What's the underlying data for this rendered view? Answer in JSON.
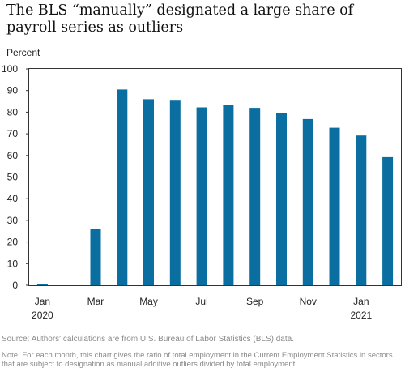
{
  "chart_data": {
    "type": "bar",
    "title": "The BLS “manually” designated a large share of payroll series as outliers",
    "ylabel": "Percent",
    "xlabel": "",
    "ylim": [
      0,
      100
    ],
    "yticks": [
      0,
      10,
      20,
      30,
      40,
      50,
      60,
      70,
      80,
      90,
      100
    ],
    "grid": false,
    "color": "#0a6fa0",
    "categories": [
      "Jan 2020",
      "Feb 2020",
      "Mar 2020",
      "Apr 2020",
      "May 2020",
      "Jun 2020",
      "Jul 2020",
      "Aug 2020",
      "Sep 2020",
      "Oct 2020",
      "Nov 2020",
      "Dec 2020",
      "Jan 2021",
      "Feb 2021"
    ],
    "values": [
      0.5,
      0,
      26,
      90.5,
      86,
      85.3,
      82.2,
      83.2,
      82,
      79.7,
      76.8,
      72.8,
      69.2,
      59.2
    ],
    "xtick_labels": [
      {
        "line1": "Jan",
        "line2": "2020"
      },
      {
        "line1": "",
        "line2": ""
      },
      {
        "line1": "Mar",
        "line2": ""
      },
      {
        "line1": "",
        "line2": ""
      },
      {
        "line1": "May",
        "line2": ""
      },
      {
        "line1": "",
        "line2": ""
      },
      {
        "line1": "Jul",
        "line2": ""
      },
      {
        "line1": "",
        "line2": ""
      },
      {
        "line1": "Sep",
        "line2": ""
      },
      {
        "line1": "",
        "line2": ""
      },
      {
        "line1": "Nov",
        "line2": ""
      },
      {
        "line1": "",
        "line2": ""
      },
      {
        "line1": "Jan",
        "line2": "2021"
      },
      {
        "line1": "",
        "line2": ""
      }
    ]
  },
  "source": "Source: Authors' calculations are from U.S. Bureau of Labor Statistics (BLS) data.",
  "note": "Note: For each month, this chart gives the ratio of total employment in the Current Employment Statistics in sectors that are subject to designation as manual additive outliers divided by total employment."
}
